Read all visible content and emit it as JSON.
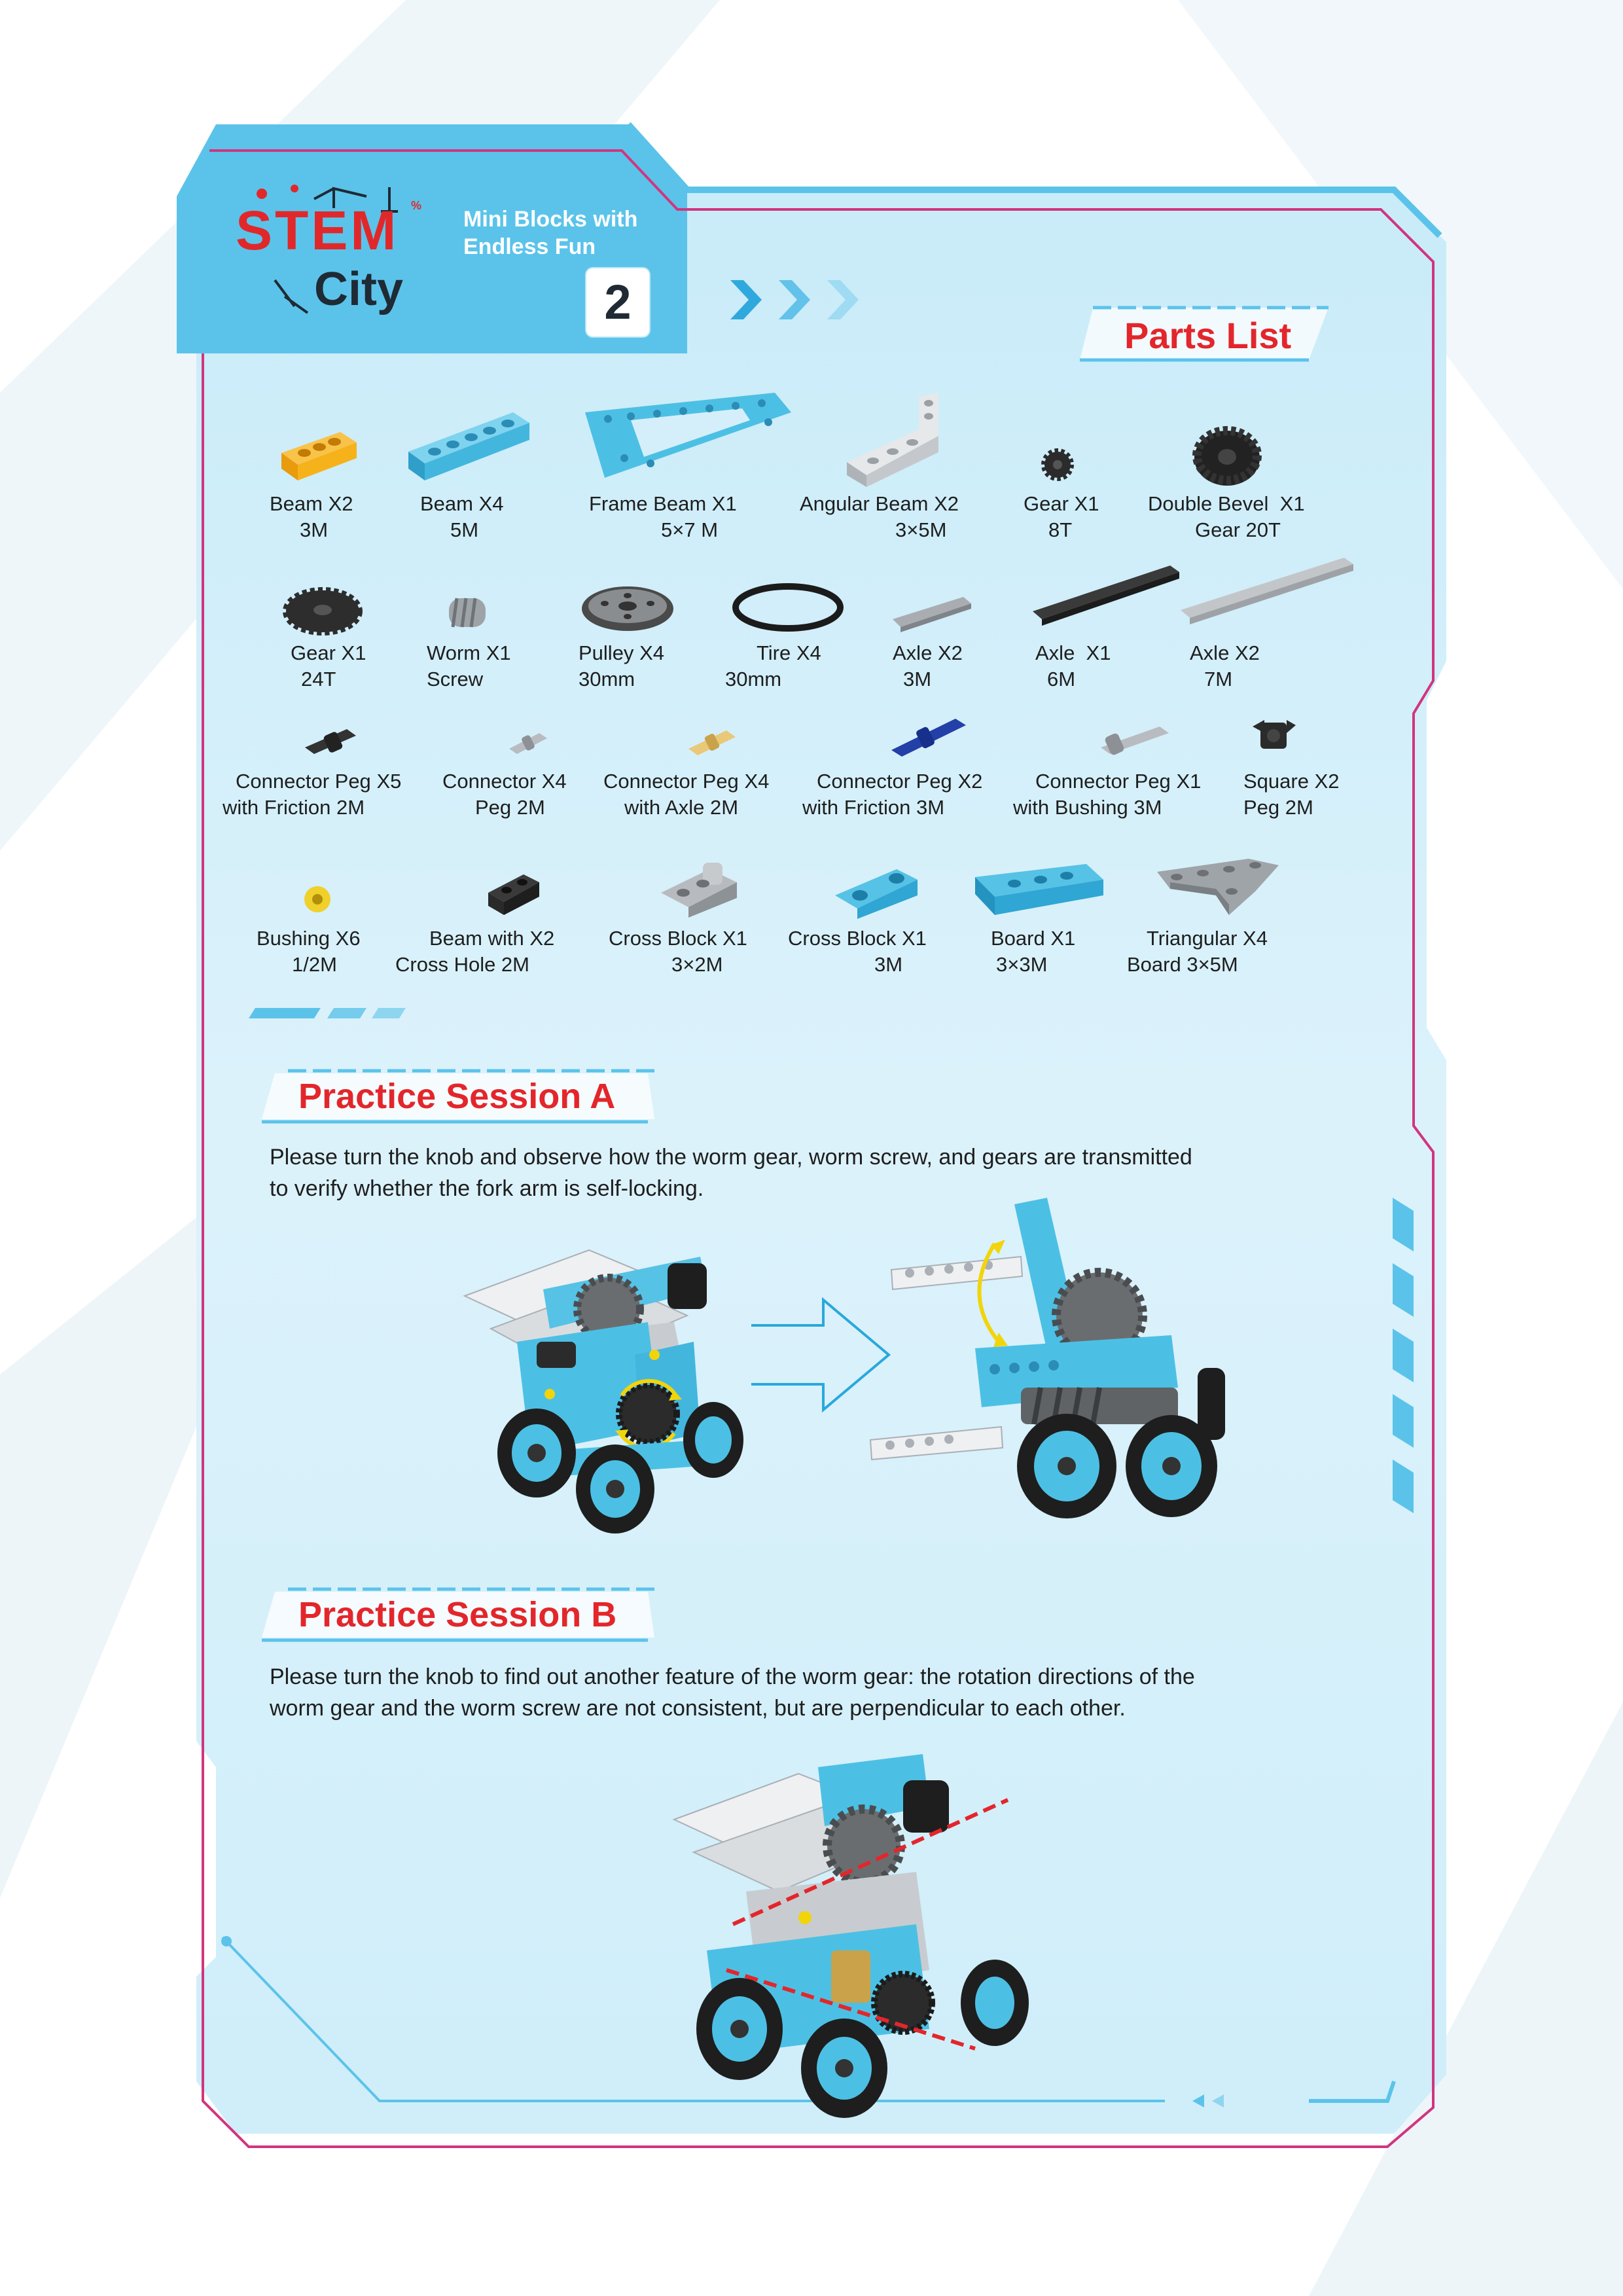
{
  "header": {
    "logo_top": "STEM",
    "logo_bottom": "City",
    "logo_mark": "%",
    "tagline_1": "Mini Blocks with",
    "tagline_2": "Endless Fun",
    "step_number": "2"
  },
  "parts_list": {
    "title": "Parts List",
    "items": [
      {
        "name_1": "Beam",
        "qty": "X2",
        "name_2": "3M",
        "icon": "beam-3m-orange-icon"
      },
      {
        "name_1": "Beam",
        "qty": "X4",
        "name_2": "5M",
        "icon": "beam-5m-blue-icon"
      },
      {
        "name_1": "Frame Beam",
        "qty": "X1",
        "name_2": "5×7 M",
        "icon": "frame-beam-icon"
      },
      {
        "name_1": "Angular Beam",
        "qty": "X2",
        "name_2": "3×5M",
        "icon": "angular-beam-icon"
      },
      {
        "name_1": "Gear",
        "qty": "X1",
        "name_2": "8T",
        "icon": "gear-8t-icon"
      },
      {
        "name_1": "Double Bevel",
        "qty": "X1",
        "name_2": "Gear 20T",
        "icon": "double-bevel-gear-icon"
      },
      {
        "name_1": "Gear",
        "qty": "X1",
        "name_2": "24T",
        "icon": "gear-24t-icon"
      },
      {
        "name_1": "Worm",
        "qty": "X1",
        "name_2": "Screw",
        "icon": "worm-screw-icon"
      },
      {
        "name_1": "Pulley",
        "qty": "X4",
        "name_2": "30mm",
        "icon": "pulley-icon"
      },
      {
        "name_1": "Tire",
        "qty": "X4",
        "name_2": "30mm",
        "icon": "tire-icon"
      },
      {
        "name_1": "Axle",
        "qty": "X2",
        "name_2": "3M",
        "icon": "axle-3m-icon"
      },
      {
        "name_1": "Axle",
        "qty": "X1",
        "name_2": "6M",
        "icon": "axle-6m-icon"
      },
      {
        "name_1": "Axle",
        "qty": "X2",
        "name_2": "7M",
        "icon": "axle-7m-icon"
      },
      {
        "name_1": "Connector Peg",
        "qty": "X5",
        "name_2": "with Friction 2M",
        "icon": "connector-peg-friction-2m-icon"
      },
      {
        "name_1": "Connector",
        "qty": "X4",
        "name_2": "Peg 2M",
        "icon": "connector-peg-2m-icon"
      },
      {
        "name_1": "Connector Peg",
        "qty": "X4",
        "name_2": "with Axle 2M",
        "icon": "connector-peg-axle-icon"
      },
      {
        "name_1": "Connector Peg",
        "qty": "X2",
        "name_2": "with Friction 3M",
        "icon": "connector-peg-friction-3m-icon"
      },
      {
        "name_1": "Connector Peg",
        "qty": "X1",
        "name_2": "with Bushing 3M",
        "icon": "connector-peg-bushing-icon"
      },
      {
        "name_1": "Square",
        "qty": "X2",
        "name_2": "Peg 2M",
        "icon": "square-peg-icon"
      },
      {
        "name_1": "Bushing",
        "qty": "X6",
        "name_2": "1/2M",
        "icon": "bushing-icon"
      },
      {
        "name_1": "Beam with",
        "qty": "X2",
        "name_2": "Cross Hole 2M",
        "icon": "beam-cross-hole-icon"
      },
      {
        "name_1": "Cross Block",
        "qty": "X1",
        "name_2": "3×2M",
        "icon": "cross-block-3x2-icon"
      },
      {
        "name_1": "Cross Block",
        "qty": "X1",
        "name_2": "3M",
        "icon": "cross-block-3m-icon"
      },
      {
        "name_1": "Board",
        "qty": "X1",
        "name_2": "3×3M",
        "icon": "board-3x3-icon"
      },
      {
        "name_1": "Triangular",
        "qty": "X4",
        "name_2": "Board 3×5M",
        "icon": "triangular-board-icon"
      }
    ]
  },
  "session_a": {
    "title": "Practice Session A",
    "text_1": "Please turn the knob and observe how the worm gear, worm screw, and gears are transmitted",
    "text_2": "to verify whether the fork arm is self-locking."
  },
  "session_b": {
    "title": "Practice Session B",
    "text_1": "Please turn the knob to find out another feature of the worm gear: the rotation directions of the",
    "text_2": "worm gear and the worm screw are not consistent, but are perpendicular to each other."
  },
  "colors": {
    "accent_blue": "#5bc3ea",
    "brand_red": "#e3262b",
    "frame_magenta": "#d1357f",
    "part_blue": "#4cc0e4",
    "part_orange": "#f6b21b"
  }
}
